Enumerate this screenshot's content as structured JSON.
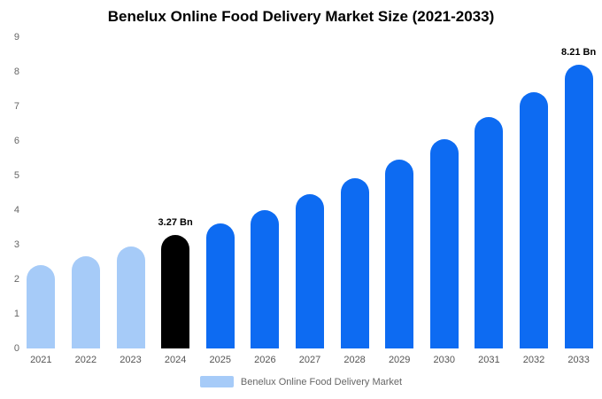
{
  "title": "Benelux Online Food Delivery Market Size (2021-2033)",
  "chart_data": {
    "type": "bar",
    "categories": [
      "2021",
      "2022",
      "2023",
      "2024",
      "2025",
      "2026",
      "2027",
      "2028",
      "2029",
      "2030",
      "2031",
      "2032",
      "2033"
    ],
    "values": [
      2.4,
      2.66,
      2.95,
      3.27,
      3.62,
      4.01,
      4.45,
      4.93,
      5.46,
      6.05,
      6.7,
      7.42,
      8.21
    ],
    "bar_colors": [
      "#a6cbf8",
      "#a6cbf8",
      "#a6cbf8",
      "#000000",
      "#0d6bf2",
      "#0d6bf2",
      "#0d6bf2",
      "#0d6bf2",
      "#0d6bf2",
      "#0d6bf2",
      "#0d6bf2",
      "#0d6bf2",
      "#0d6bf2"
    ],
    "annotations": [
      {
        "category": "2024",
        "text": "3.27 Bn"
      },
      {
        "category": "2033",
        "text": "8.21 Bn"
      }
    ],
    "ylim": [
      0,
      9
    ],
    "yticks": [
      0,
      1,
      2,
      3,
      4,
      5,
      6,
      7,
      8,
      9
    ],
    "grid": false,
    "xlabel": "",
    "ylabel": "",
    "legend": {
      "position": "bottom",
      "label": "Benelux Online Food Delivery Market",
      "swatch_color": "#a6cbf8"
    }
  }
}
